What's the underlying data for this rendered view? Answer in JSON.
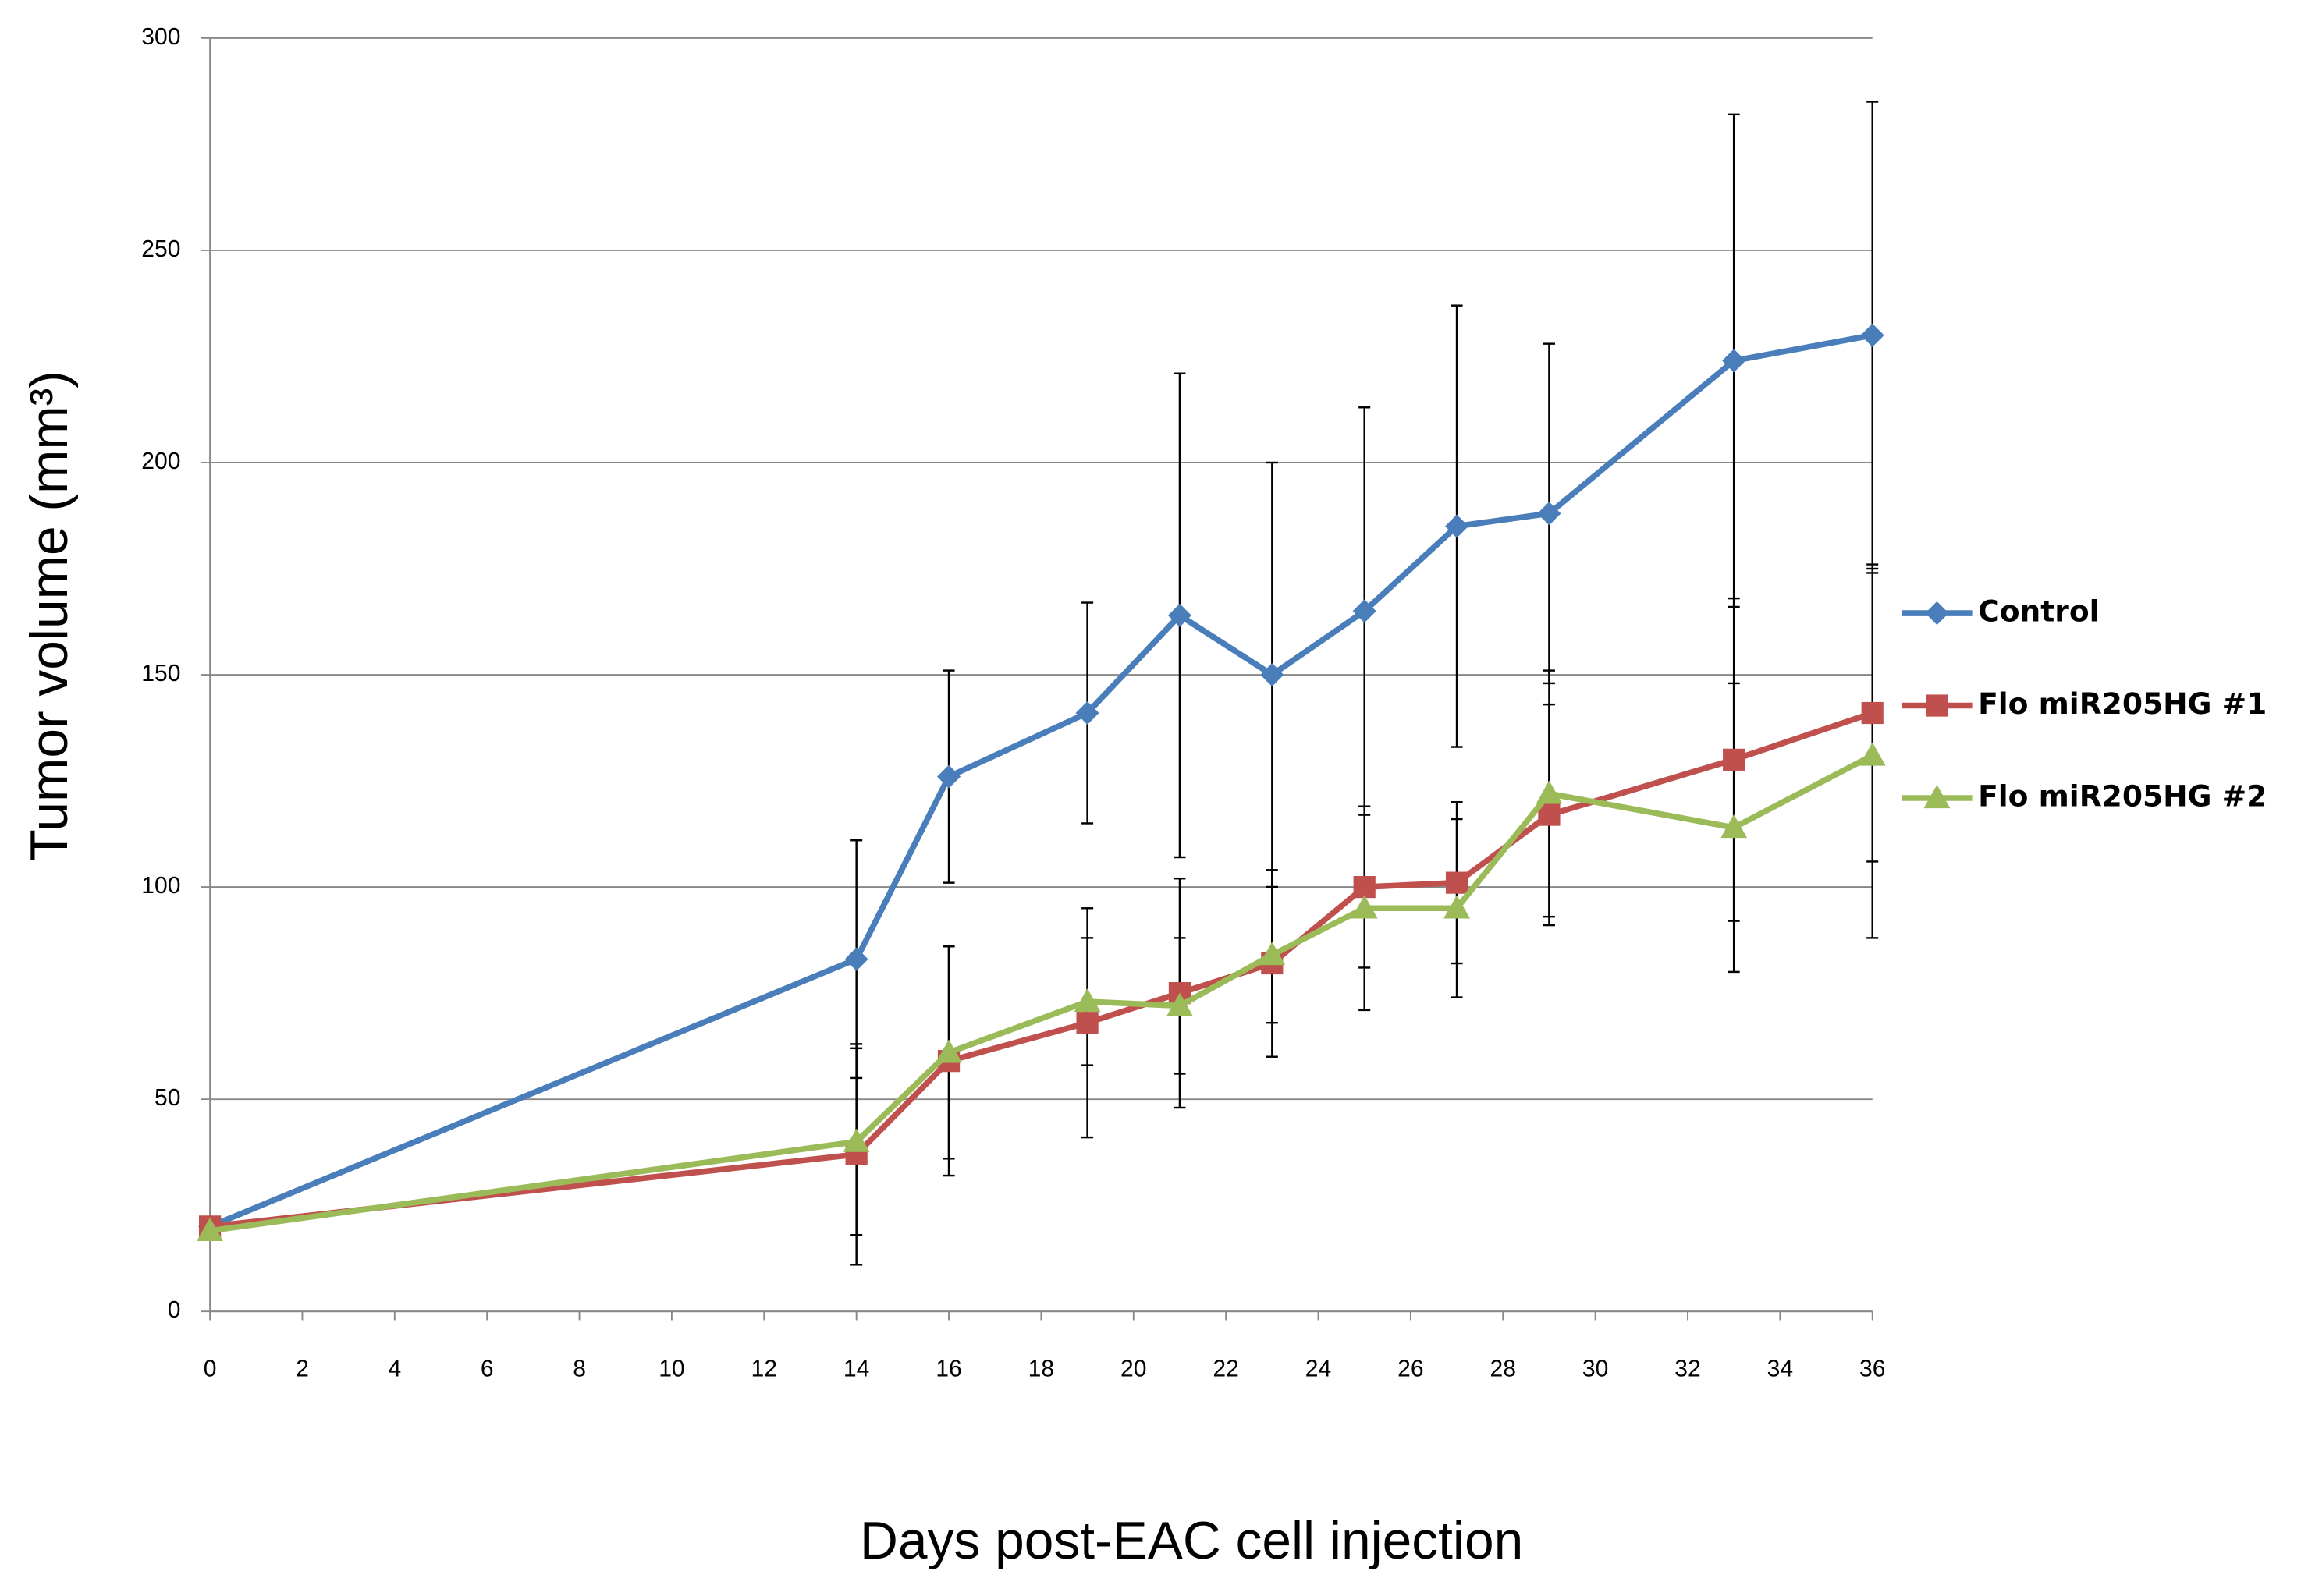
{
  "chart_data": {
    "type": "line",
    "x_label": "Days post-EAC cell injection",
    "y_label": "Tumor volume (mm³)",
    "x": [
      0,
      14,
      16,
      19,
      21,
      23,
      25,
      27,
      29,
      33,
      36
    ],
    "xlim": [
      0,
      36
    ],
    "xticks": [
      0,
      2,
      4,
      6,
      8,
      10,
      12,
      14,
      16,
      18,
      20,
      22,
      24,
      26,
      28,
      30,
      32,
      34,
      36
    ],
    "ylim": [
      0,
      300
    ],
    "yticks": [
      0,
      50,
      100,
      150,
      200,
      250,
      300
    ],
    "grid": true,
    "legend": "right",
    "series": [
      {
        "name": "Control",
        "color": "#4a7ebb",
        "marker": "diamond",
        "values": [
          20,
          83,
          126,
          141,
          164,
          150,
          165,
          185,
          188,
          224,
          230
        ],
        "errors": [
          0,
          28,
          25,
          26,
          57,
          50,
          48,
          52,
          40,
          58,
          55
        ]
      },
      {
        "name": "Flo miR205HG #1",
        "color": "#c0504d",
        "marker": "square",
        "values": [
          20,
          37,
          59,
          68,
          75,
          82,
          100,
          101,
          117,
          130,
          141
        ],
        "errors": [
          0,
          26,
          27,
          27,
          27,
          22,
          19,
          19,
          26,
          38,
          35
        ]
      },
      {
        "name": "Flo miR205HG #2",
        "color": "#9bbb59",
        "marker": "triangle",
        "values": [
          19,
          40,
          61,
          73,
          72,
          84,
          95,
          95,
          122,
          114,
          131
        ],
        "errors": [
          0,
          22,
          25,
          15,
          16,
          16,
          24,
          21,
          29,
          34,
          43
        ]
      }
    ]
  }
}
